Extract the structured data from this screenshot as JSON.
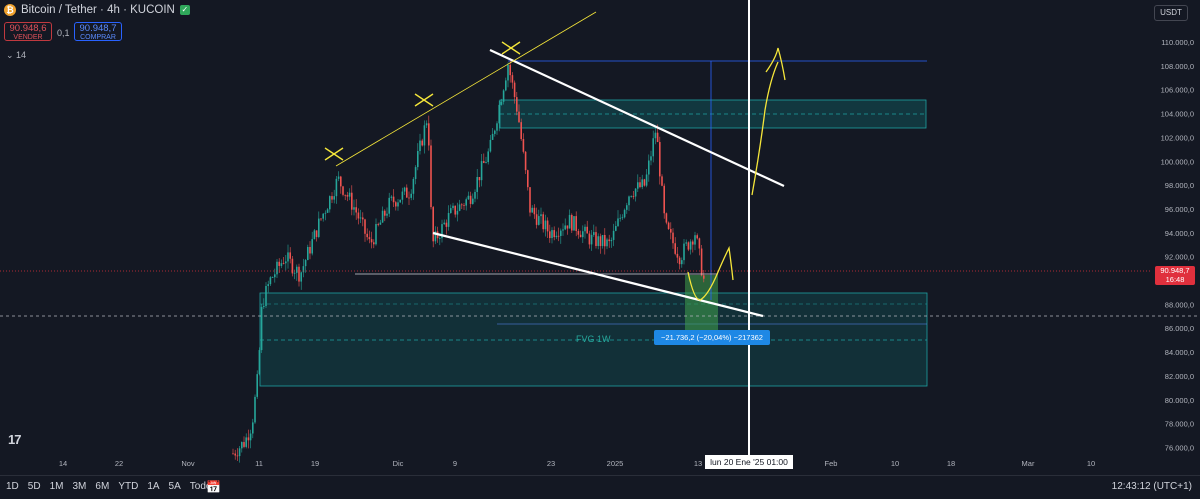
{
  "header": {
    "symbol_title": "Bitcoin / Tether · 4h · KUCOIN",
    "coin_glyph": "₿",
    "sell_price": "90.948,6",
    "sell_label": "VENDER",
    "spread": "0,1",
    "buy_price": "90.948,7",
    "buy_label": "COMPRAR",
    "indicator_toggle": "⌄ 14"
  },
  "currency_button": "USDT",
  "price_axis": {
    "ticks": [
      "110.000,0",
      "108.000,0",
      "106.000,0",
      "104.000,0",
      "102.000,0",
      "100.000,0",
      "98.000,0",
      "96.000,0",
      "94.000,0",
      "92.000,0",
      "88.000,0",
      "86.000,0",
      "84.000,0",
      "82.000,0",
      "80.000,0",
      "78.000,0",
      "76.000,0"
    ],
    "current_price": "90.948,7",
    "countdown": "16:48"
  },
  "time_axis": {
    "ticks": [
      "14",
      "22",
      "Nov",
      "11",
      "19",
      "Dic",
      "9",
      "23",
      "2025",
      "13",
      "Feb",
      "10",
      "18",
      "Mar",
      "10"
    ],
    "cursor_label": "lun 20 Ene '25   01:00"
  },
  "annotations": {
    "fvg_label": "FVG 1W",
    "measure_label": "−21.736,2 (−20,04%) −217362"
  },
  "bottom_bar": {
    "ranges": [
      "1D",
      "5D",
      "1M",
      "3M",
      "6M",
      "YTD",
      "1A",
      "5A",
      "Todos"
    ],
    "clock": "12:43:12 (UTC+1)"
  },
  "logo_text": "17",
  "colors": {
    "background": "#141823",
    "up": "#26a69a",
    "down": "#ef5350",
    "zone_fill": "#0f5e61",
    "zone_stroke": "#1fa2a2",
    "pattern_line": "#ffffff",
    "hand_drawn": "#f5e63a",
    "measure_blue": "#2962ff",
    "price_red": "#e0303d"
  }
}
